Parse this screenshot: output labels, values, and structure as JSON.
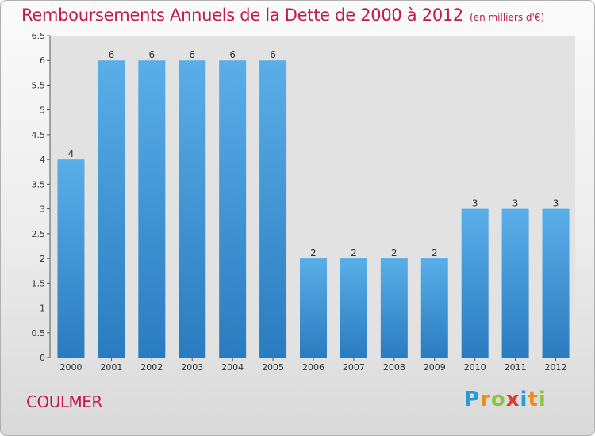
{
  "title": "Remboursements Annuels de la Dette de 2000 à 2012",
  "subtitle": "(en milliers d'€)",
  "commune": "COULMER",
  "logo": {
    "letters": [
      "P",
      "r",
      "o",
      "x",
      "i",
      "t",
      "i"
    ],
    "colors": [
      "#2a9bd6",
      "#f08a1d",
      "#8cc63f",
      "#e2372c",
      "#2a9bd6",
      "#f08a1d",
      "#8cc63f"
    ]
  },
  "chart_data": {
    "type": "bar",
    "title": "Remboursements Annuels de la Dette de 2000 à 2012",
    "subtitle": "(en milliers d'€)",
    "categories": [
      "2000",
      "2001",
      "2002",
      "2003",
      "2004",
      "2005",
      "2006",
      "2007",
      "2008",
      "2009",
      "2010",
      "2011",
      "2012"
    ],
    "values": [
      4,
      6,
      6,
      6,
      6,
      6,
      2,
      2,
      2,
      2,
      3,
      3,
      3
    ],
    "value_labels": [
      "4",
      "6",
      "6",
      "6",
      "6",
      "6",
      "2",
      "2",
      "2",
      "2",
      "3",
      "3",
      "3"
    ],
    "ylim": [
      0,
      6.5
    ],
    "yticks": [
      "0",
      "0.5",
      "1",
      "1.5",
      "2",
      "2.5",
      "3",
      "3.5",
      "4",
      "4.5",
      "5",
      "5.5",
      "6",
      "6.5"
    ],
    "grid": false,
    "bar_color": "#3f96d8",
    "xlabel": "",
    "ylabel": ""
  }
}
